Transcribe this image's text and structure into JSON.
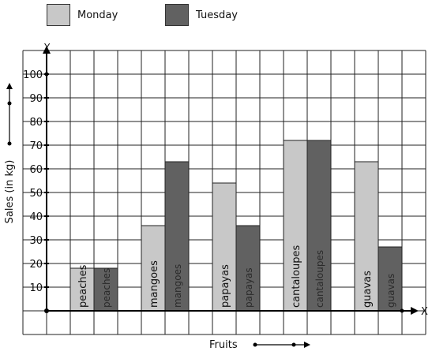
{
  "chart_data": {
    "type": "bar",
    "categories": [
      "peaches",
      "mangoes",
      "papayas",
      "cantaloupes",
      "guavas"
    ],
    "series": [
      {
        "name": "Monday",
        "values": [
          18,
          36,
          54,
          72,
          63
        ],
        "color": "#c8c8c8"
      },
      {
        "name": "Tuesday",
        "values": [
          18,
          63,
          36,
          72,
          27
        ],
        "color": "#616161"
      }
    ],
    "xlabel": "Fruits",
    "ylabel": "Sales (in kg)",
    "x_axis_letter": "X",
    "y_axis_letter": "Y",
    "yticks": [
      "10",
      "20",
      "30",
      "40",
      "50",
      "60",
      "70",
      "80",
      "90",
      "100"
    ],
    "ylim": [
      0,
      100
    ],
    "grid": true,
    "legend_position": "top-left"
  }
}
